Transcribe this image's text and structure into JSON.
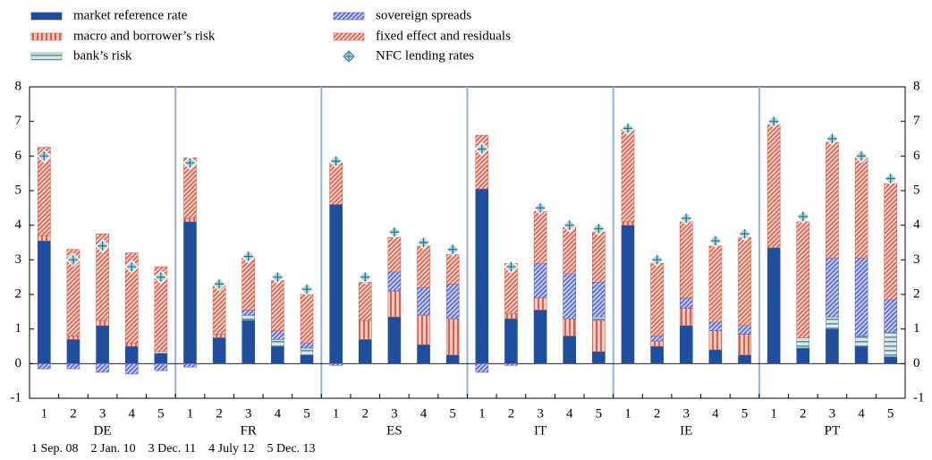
{
  "chart_data": {
    "type": "stacked-bar",
    "categories": [
      "1",
      "2",
      "3",
      "4",
      "5",
      "1",
      "2",
      "3",
      "4",
      "5",
      "1",
      "2",
      "3",
      "4",
      "5",
      "1",
      "2",
      "3",
      "4",
      "5",
      "1",
      "2",
      "3",
      "4",
      "5",
      "1",
      "2",
      "3",
      "4",
      "5"
    ],
    "groups": [
      "DE",
      "FR",
      "ES",
      "IT",
      "IE",
      "PT"
    ],
    "footnote": "1 Sep. 08    2 Jan. 10    3 Dec. 11    4 July 12    5 Dec. 13",
    "ylim": [
      -1,
      8
    ],
    "yticks": [
      -1,
      0,
      1,
      2,
      3,
      4,
      5,
      6,
      7,
      8
    ],
    "series": [
      {
        "name": "market reference rate",
        "color": "#1f4e9e",
        "values": [
          3.55,
          0.7,
          1.1,
          0.5,
          0.3,
          4.1,
          0.75,
          1.25,
          0.5,
          0.25,
          4.6,
          0.7,
          1.35,
          0.55,
          0.25,
          5.05,
          1.3,
          1.55,
          0.8,
          0.35,
          4.0,
          0.5,
          1.1,
          0.4,
          0.25,
          3.35,
          0.45,
          1.0,
          0.5,
          0.2
        ]
      },
      {
        "name": "macro and borrower’s risk",
        "color": "#d9604c",
        "values": [
          0.15,
          0.1,
          0.15,
          0.1,
          0,
          0.1,
          0.1,
          0,
          0,
          0,
          0,
          0.55,
          0.75,
          0.85,
          1.05,
          0,
          0.15,
          0.35,
          0.5,
          0.9,
          0.1,
          0.15,
          0.5,
          0.55,
          0.6,
          0,
          0,
          0,
          0,
          0
        ]
      },
      {
        "name": "bank’s risk",
        "color": "#5f8f96",
        "values": [
          0,
          0,
          0,
          0,
          0.05,
          0,
          0,
          0.15,
          0.2,
          0.2,
          0,
          0,
          0,
          0,
          0,
          0,
          0,
          0,
          0,
          0.1,
          0,
          0,
          0,
          0,
          0,
          0,
          0.3,
          0.35,
          0.3,
          0.7
        ]
      },
      {
        "name": "sovereign spreads",
        "color": "#5566cc",
        "values": [
          -0.15,
          -0.15,
          -0.25,
          -0.3,
          -0.2,
          -0.1,
          0,
          0.15,
          0.25,
          0.15,
          -0.05,
          0,
          0.55,
          0.8,
          1.0,
          -0.25,
          -0.05,
          1.0,
          1.3,
          1.0,
          0,
          0.15,
          0.3,
          0.25,
          0.25,
          0,
          0,
          1.7,
          2.25,
          0.95
        ]
      },
      {
        "name": "fixed effect and residuals",
        "color": "#d9604c",
        "values": [
          2.55,
          2.5,
          2.5,
          2.6,
          2.45,
          1.75,
          1.4,
          1.5,
          1.45,
          1.4,
          1.2,
          1.1,
          1.0,
          1.2,
          0.85,
          1.55,
          1.45,
          1.5,
          1.35,
          1.45,
          2.7,
          2.1,
          2.2,
          2.2,
          2.55,
          3.55,
          3.35,
          3.35,
          2.9,
          3.35
        ]
      }
    ],
    "markers": {
      "name": "NFC lending rates",
      "color": "#a9d6df",
      "values": [
        6.0,
        3.0,
        3.4,
        2.8,
        2.5,
        5.8,
        2.3,
        3.1,
        2.5,
        2.15,
        5.85,
        2.5,
        3.8,
        3.5,
        3.3,
        6.2,
        2.8,
        4.5,
        4.0,
        3.9,
        6.8,
        3.0,
        4.2,
        3.55,
        3.75,
        7.0,
        4.25,
        6.5,
        6.0,
        5.35
      ]
    }
  }
}
